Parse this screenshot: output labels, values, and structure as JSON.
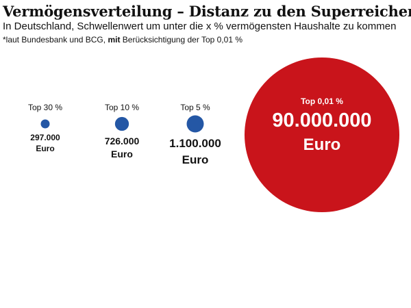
{
  "header": {
    "title": "Vermögensverteilung – Distanz zu den Superreichen",
    "subtitle": "In Deutschland, Schwellenwert um unter die x % vermögensten Haushalte zu kommen",
    "note_prefix": "*laut Bundesbank und BCG, ",
    "note_bold": "mit",
    "note_suffix": " Berücksichtigung der Top 0,01 %"
  },
  "colors": {
    "small_circle": "#2457a5",
    "large_circle": "#c9141b",
    "text": "#111111",
    "large_text": "#ffffff"
  },
  "chart_data": {
    "type": "bubble",
    "title": "Vermögensverteilung – Distanz zu den Superreichen",
    "subtitle": "In Deutschland, Schwellenwert um unter die x % vermögensten Haushalte zu kommen",
    "encoding": "circle area proportional to value",
    "unit": "Euro",
    "categories": [
      "Top 30 %",
      "Top 10 %",
      "Top 5 %",
      "Top 0,01 %"
    ],
    "values": [
      297000,
      726000,
      1100000,
      90000000
    ],
    "value_labels": [
      "297.000",
      "726.000",
      "1.100.000",
      "90.000.000"
    ],
    "unit_labels": [
      "Euro",
      "Euro",
      "Euro",
      "Euro"
    ]
  }
}
